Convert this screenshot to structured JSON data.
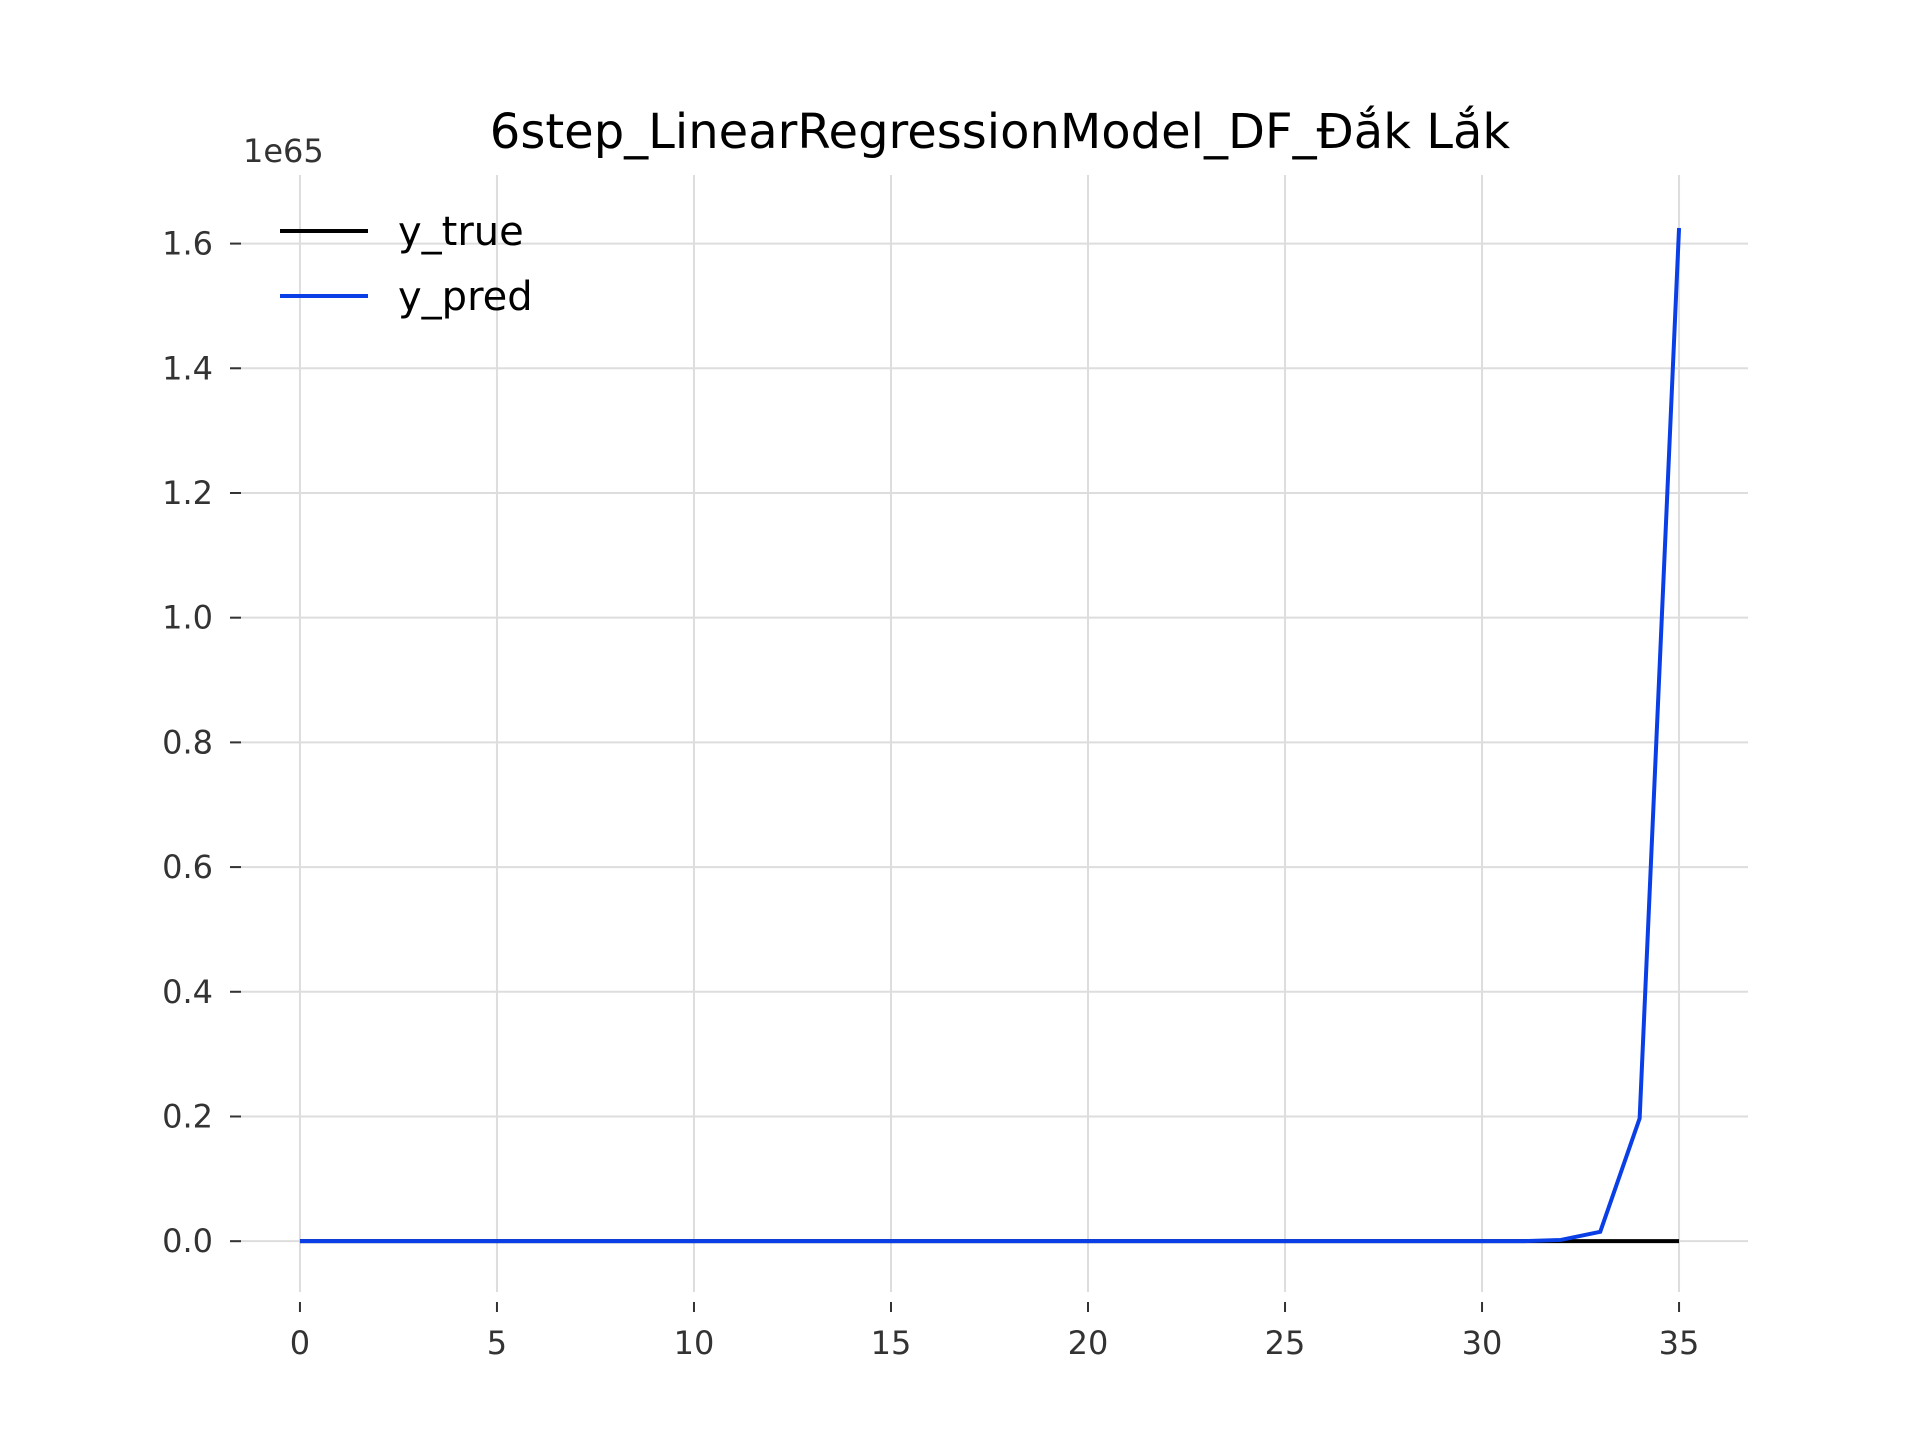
{
  "chart_data": {
    "type": "line",
    "title": "6step_LinearRegressionModel_DF_Đắk Lắk",
    "xlabel": "",
    "ylabel": "",
    "y_offset_label": "1e65",
    "y_scale": 1e+65,
    "xlim": [
      -1.75,
      36.75
    ],
    "ylim": [
      -0.0815,
      1.71
    ],
    "x_ticks": [
      0,
      5,
      10,
      15,
      20,
      25,
      30,
      35
    ],
    "x_tick_labels": [
      "0",
      "5",
      "10",
      "15",
      "20",
      "25",
      "30",
      "35"
    ],
    "y_ticks": [
      0.0,
      0.2,
      0.4,
      0.6,
      0.8,
      1.0,
      1.2,
      1.4,
      1.6
    ],
    "y_tick_labels": [
      "0.0",
      "0.2",
      "0.4",
      "0.6",
      "0.8",
      "1.0",
      "1.2",
      "1.4",
      "1.6"
    ],
    "grid": true,
    "legend_position": "top-left",
    "x": [
      0,
      1,
      2,
      3,
      4,
      5,
      6,
      7,
      8,
      9,
      10,
      11,
      12,
      13,
      14,
      15,
      16,
      17,
      18,
      19,
      20,
      21,
      22,
      23,
      24,
      25,
      26,
      27,
      28,
      29,
      30,
      31,
      32,
      33,
      34,
      35
    ],
    "series": [
      {
        "name": "y_true",
        "color": "#000000",
        "values": [
          0,
          0,
          0,
          0,
          0,
          0,
          0,
          0,
          0,
          0,
          0,
          0,
          0,
          0,
          0,
          0,
          0,
          0,
          0,
          0,
          0,
          0,
          0,
          0,
          0,
          0,
          0,
          0,
          0,
          0,
          0,
          0,
          0,
          0,
          0,
          0
        ]
      },
      {
        "name": "y_pred",
        "color": "#0a3ee6",
        "values": [
          0,
          0,
          0,
          0,
          0,
          0,
          0,
          0,
          0,
          0,
          0,
          0,
          0,
          0,
          0,
          0,
          0,
          0,
          0,
          0,
          0,
          0,
          0,
          0,
          0,
          0,
          0,
          0,
          0,
          0,
          0,
          0,
          0.002,
          0.015,
          0.197,
          1.625
        ]
      }
    ]
  }
}
